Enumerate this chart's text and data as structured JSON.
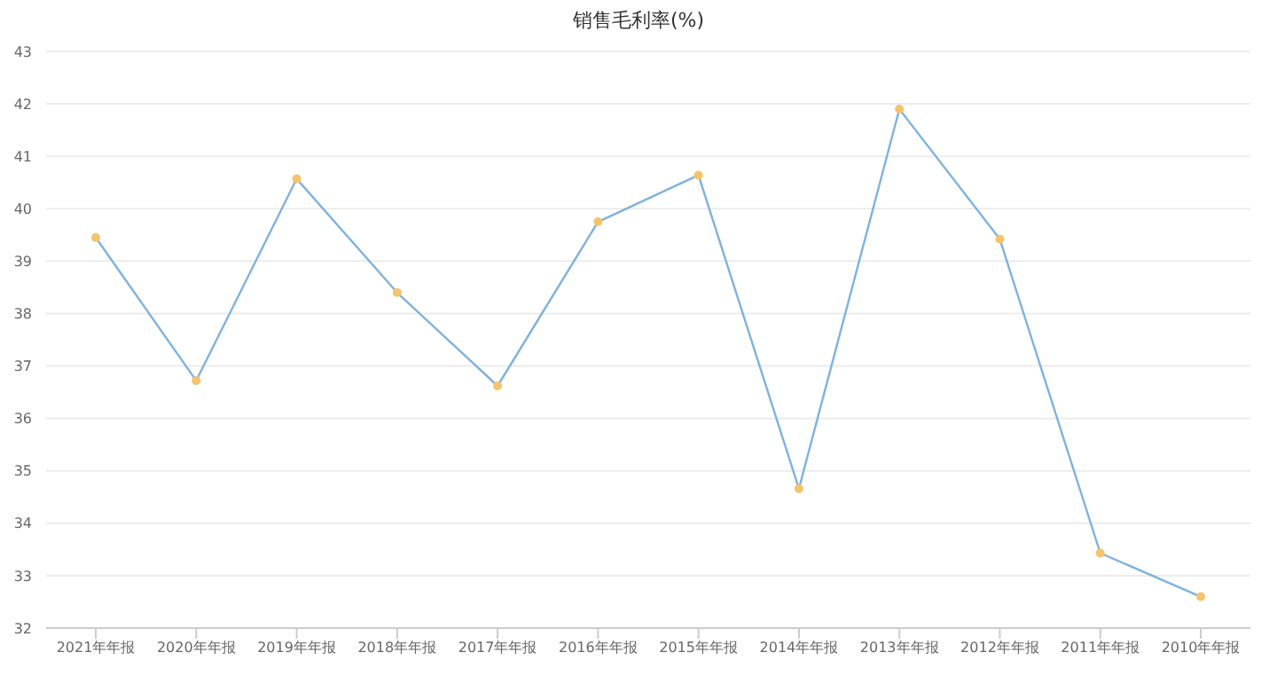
{
  "chart_data": {
    "type": "line",
    "title": "销售毛利率(%)",
    "categories": [
      "2021年年报",
      "2020年年报",
      "2019年年报",
      "2018年年报",
      "2017年年报",
      "2016年年报",
      "2015年年报",
      "2014年年报",
      "2013年年报",
      "2012年年报",
      "2011年年报",
      "2010年年报"
    ],
    "series": [
      {
        "color": "#7fb2dd",
        "colors": [
          "#f5c36b",
          "#f5c36b",
          "#f5c36b",
          "#f5c36b",
          "#f5c36b",
          "#f5c36b",
          "#f5c36b",
          "#f5c36b",
          "#f5c36b",
          "#f5c36b",
          "#f5c36b",
          "#f5c36b"
        ],
        "values": [
          39.45,
          36.72,
          40.57,
          38.4,
          36.62,
          39.75,
          40.64,
          34.66,
          41.9,
          39.42,
          33.43,
          32.6
        ]
      }
    ],
    "ylim": [
      32,
      43
    ],
    "yticks": [
      32,
      33,
      34,
      35,
      36,
      37,
      38,
      39,
      40,
      41,
      42,
      43
    ],
    "grid": "y",
    "marker": "circle"
  }
}
